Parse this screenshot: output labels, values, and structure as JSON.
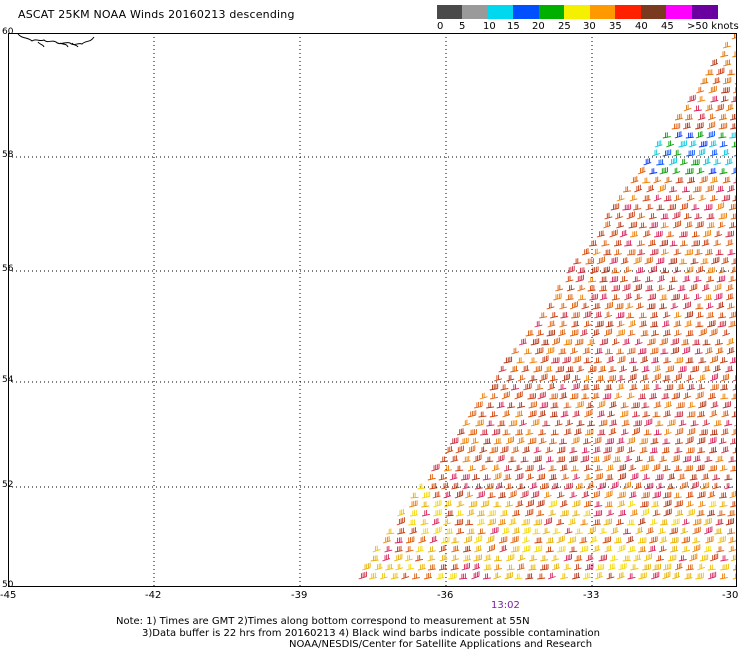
{
  "title": "ASCAT 25KM NOAA Winds 20160213 descending",
  "legend": {
    "labels": [
      "0",
      "5",
      "10",
      "15",
      "20",
      "25",
      "30",
      "35",
      "40",
      "45",
      ">50 knots"
    ],
    "colors": [
      "#4a4a4a",
      "#9a9a9a",
      "#00d8f0",
      "#0050ff",
      "#00b000",
      "#f5f000",
      "#ff9900",
      "#ff2000",
      "#7a3a20",
      "#ff00ff",
      "#6a00a0"
    ]
  },
  "axes": {
    "lat_labels": [
      "60",
      "58",
      "56",
      "54",
      "52",
      "50"
    ],
    "lon_labels": [
      "-45",
      "-42",
      "-39",
      "-36",
      "-33",
      "-30"
    ]
  },
  "time_label": "13:02",
  "notes": [
    "Note: 1) Times are GMT 2)Times along bottom correspond to measurement at 55N",
    "3)Data buffer is 22 hrs from 20160213 4) Black wind barbs indicate possible contamination",
    "NOAA/NESDIS/Center for Satellite Applications and Research"
  ],
  "map": {
    "lat_range": [
      50,
      60
    ],
    "lon_range": [
      -45,
      -30
    ],
    "grid": "dotted",
    "swath_color_note": "wind barbs colored by speed; mostly 25-40 knots, blue/green/cyan near 58N"
  }
}
